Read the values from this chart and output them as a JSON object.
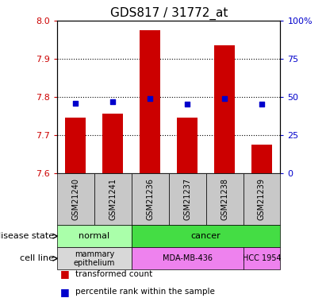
{
  "title": "GDS817 / 31772_at",
  "samples": [
    "GSM21240",
    "GSM21241",
    "GSM21236",
    "GSM21237",
    "GSM21238",
    "GSM21239"
  ],
  "bar_values": [
    7.745,
    7.755,
    7.975,
    7.745,
    7.935,
    7.675
  ],
  "percentile_values": [
    46,
    47,
    49,
    45,
    49,
    45
  ],
  "ylim_left": [
    7.6,
    8.0
  ],
  "ylim_right": [
    0,
    100
  ],
  "yticks_left": [
    7.6,
    7.7,
    7.8,
    7.9,
    8.0
  ],
  "yticks_right": [
    0,
    25,
    50,
    75,
    100
  ],
  "ytick_labels_right": [
    "0",
    "25",
    "50",
    "75",
    "100%"
  ],
  "bar_color": "#cc0000",
  "percentile_color": "#0000cc",
  "bar_width": 0.55,
  "disease_groups": [
    {
      "label": "normal",
      "cols": [
        0,
        1
      ],
      "color": "#aaffaa"
    },
    {
      "label": "cancer",
      "cols": [
        2,
        3,
        4,
        5
      ],
      "color": "#44dd44"
    }
  ],
  "cell_groups": [
    {
      "label": "mammary\nepithelium",
      "cols": [
        0,
        1
      ],
      "color": "#d8d8d8"
    },
    {
      "label": "MDA-MB-436",
      "cols": [
        2,
        3,
        4
      ],
      "color": "#ee82ee"
    },
    {
      "label": "HCC 1954",
      "cols": [
        5
      ],
      "color": "#ee82ee"
    }
  ],
  "tick_color_left": "#cc0000",
  "tick_color_right": "#0000cc",
  "sample_bg_color": "#c8c8c8",
  "legend_items": [
    {
      "color": "#cc0000",
      "label": "transformed count"
    },
    {
      "color": "#0000cc",
      "label": "percentile rank within the sample"
    }
  ],
  "left_labels": [
    {
      "text": "disease state",
      "row": 0
    },
    {
      "text": "cell line",
      "row": 1
    }
  ]
}
